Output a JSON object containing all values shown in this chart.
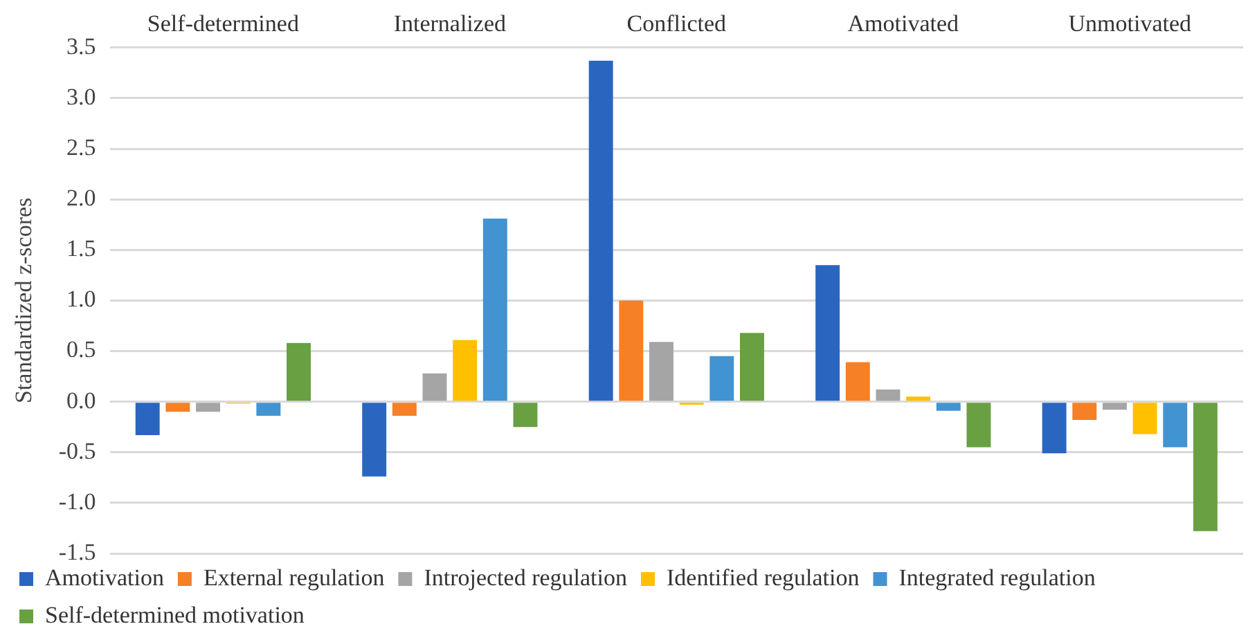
{
  "chart_data": {
    "type": "bar",
    "categories": [
      "Self-determined",
      "Internalized",
      "Conflicted",
      "Amotivated",
      "Unmotivated"
    ],
    "ylabel": "Standardized z-scores",
    "ylim": [
      -1.5,
      3.5
    ],
    "yticks": [
      {
        "value": -1.5,
        "label": "-1.5"
      },
      {
        "value": -1,
        "label": "-1.0"
      },
      {
        "value": -0.5,
        "label": "-0.5"
      },
      {
        "value": 0,
        "label": "0.0"
      },
      {
        "value": 0.5,
        "label": "0.5"
      },
      {
        "value": 1,
        "label": "1.0"
      },
      {
        "value": 1.5,
        "label": "1.5"
      },
      {
        "value": 2,
        "label": "2.0"
      },
      {
        "value": 2.5,
        "label": "2.5"
      },
      {
        "value": 3,
        "label": "3.0"
      },
      {
        "value": 3.5,
        "label": "3.5"
      }
    ],
    "grid": "y",
    "legend": "bottom",
    "series": [
      {
        "name": "Amotivation",
        "color": "#2a66c0",
        "values": [
          -0.33,
          -0.74,
          3.37,
          1.35,
          -0.51
        ]
      },
      {
        "name": "External regulation",
        "color": "#f58026",
        "values": [
          -0.1,
          -0.14,
          1.0,
          0.39,
          -0.18
        ]
      },
      {
        "name": "Introjected regulation",
        "color": "#a5a5a5",
        "values": [
          -0.1,
          0.28,
          0.59,
          0.12,
          -0.08
        ]
      },
      {
        "name": "Identified regulation",
        "color": "#ffc000",
        "values": [
          -0.02,
          0.61,
          -0.03,
          0.05,
          -0.32
        ]
      },
      {
        "name": "Integrated regulation",
        "color": "#4293d2",
        "values": [
          -0.14,
          1.81,
          0.45,
          -0.09,
          -0.45
        ]
      },
      {
        "name": "Self-determined motivation",
        "color": "#68a042",
        "values": [
          0.58,
          -0.25,
          0.68,
          -0.45,
          -1.28
        ]
      }
    ]
  }
}
